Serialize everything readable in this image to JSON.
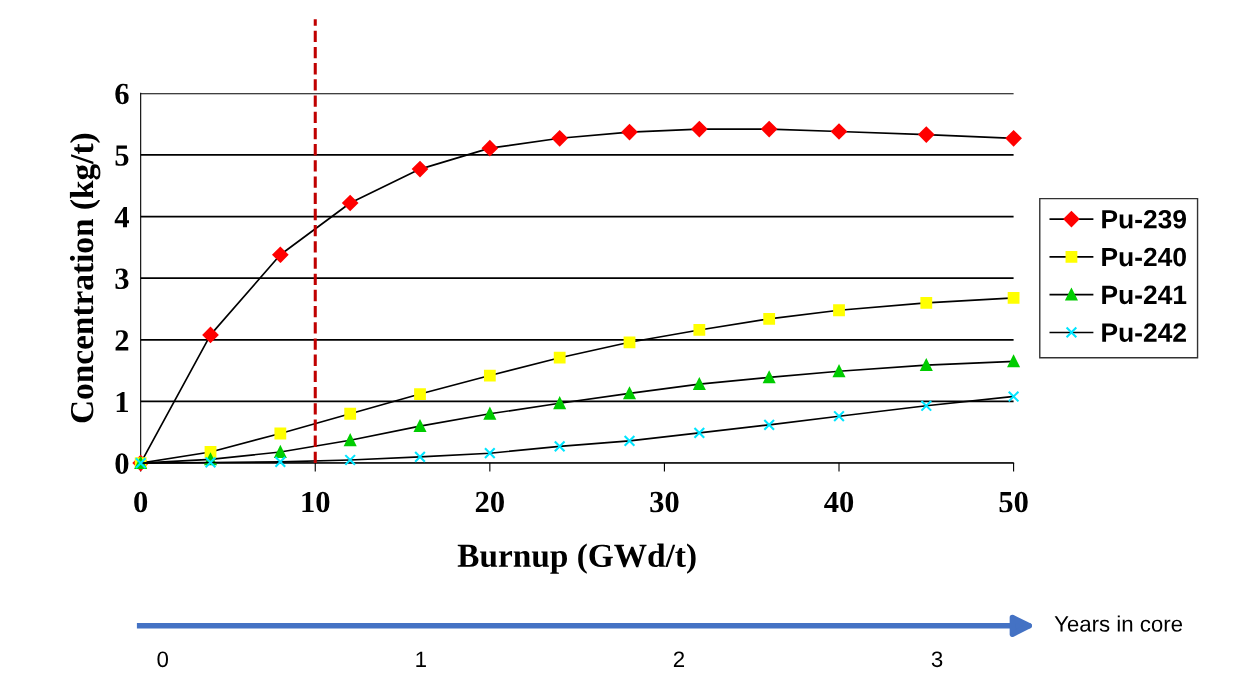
{
  "chart_data": {
    "type": "line",
    "xlabel": "Burnup (GWd/t)",
    "ylabel": "Concentration (kg/t)",
    "x": [
      0,
      4,
      8,
      12,
      16,
      20,
      24,
      28,
      32,
      36,
      40,
      45,
      50
    ],
    "series": [
      {
        "name": "Pu-239",
        "color": "#ff0000",
        "marker": "diamond",
        "values": [
          0,
          2.08,
          3.38,
          4.22,
          4.77,
          5.11,
          5.27,
          5.37,
          5.42,
          5.42,
          5.38,
          5.33,
          5.27
        ]
      },
      {
        "name": "Pu-240",
        "color": "#ffff00",
        "marker": "square",
        "values": [
          0,
          0.18,
          0.48,
          0.8,
          1.12,
          1.42,
          1.71,
          1.96,
          2.16,
          2.34,
          2.48,
          2.6,
          2.68
        ]
      },
      {
        "name": "Pu-241",
        "color": "#00cc00",
        "marker": "triangle",
        "values": [
          0,
          0.06,
          0.18,
          0.37,
          0.6,
          0.8,
          0.97,
          1.13,
          1.28,
          1.39,
          1.49,
          1.59,
          1.65
        ]
      },
      {
        "name": "Pu-242",
        "color": "#00e5ff",
        "marker": "cross",
        "values": [
          0,
          0.01,
          0.02,
          0.05,
          0.1,
          0.16,
          0.27,
          0.36,
          0.49,
          0.62,
          0.76,
          0.93,
          1.08
        ]
      }
    ],
    "xlim": [
      0,
      50
    ],
    "xticks": [
      0,
      10,
      20,
      30,
      40,
      50
    ],
    "ylim": [
      0,
      6
    ],
    "yticks": [
      0,
      1,
      2,
      3,
      4,
      5,
      6
    ],
    "x2lim": [
      -0.1,
      3.35
    ],
    "x2ticks": [
      0,
      1,
      2,
      3
    ],
    "x2label": "Years in core",
    "ref_lines": [
      {
        "axis": "x",
        "value": 10,
        "color": "#c00000",
        "line_style": "dashed"
      }
    ],
    "grid": "y",
    "legend": "right",
    "line_style": "solid"
  }
}
